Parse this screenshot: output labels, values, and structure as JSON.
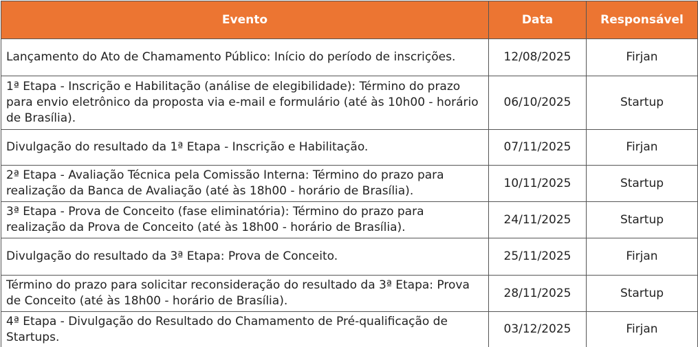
{
  "table": {
    "header": [
      "Evento",
      "Data",
      "Responsável"
    ],
    "rows": [
      [
        "Lançamento do Ato de Chamamento Público: Início do período de inscrições.",
        "12/08/2025",
        "Firjan"
      ],
      [
        "1ª Etapa - Inscrição e Habilitação (análise de elegibilidade): Término do prazo para envio eletrônico da proposta via e-mail e formulário (até às 10h00 - horário de Brasília).",
        "06/10/2025",
        "Startup"
      ],
      [
        "Divulgação do resultado da 1ª Etapa - Inscrição e Habilitação.",
        "07/11/2025",
        "Firjan"
      ],
      [
        "2ª Etapa - Avaliação Técnica pela Comissão Interna: Término do prazo para realização da Banca de Avaliação (até às 18h00 - horário de Brasília).",
        "10/11/2025",
        "Startup"
      ],
      [
        "3ª Etapa - Prova de Conceito (fase eliminatória): Término do prazo para realização da Prova de Conceito (até às 18h00 - horário de Brasília).",
        "24/11/2025",
        "Startup"
      ],
      [
        "Divulgação do resultado da 3ª Etapa:  Prova de Conceito.",
        "25/11/2025",
        "Firjan"
      ],
      [
        "Término do prazo para solicitar reconsideração do resultado da 3ª Etapa: Prova de Conceito (até às 18h00 - horário de Brasília).",
        "28/11/2025",
        "Startup"
      ],
      [
        "4ª Etapa - Divulgação do Resultado do Chamamento de Pré-qualificação de Startups.",
        "03/12/2025",
        "Firjan"
      ]
    ]
  }
}
